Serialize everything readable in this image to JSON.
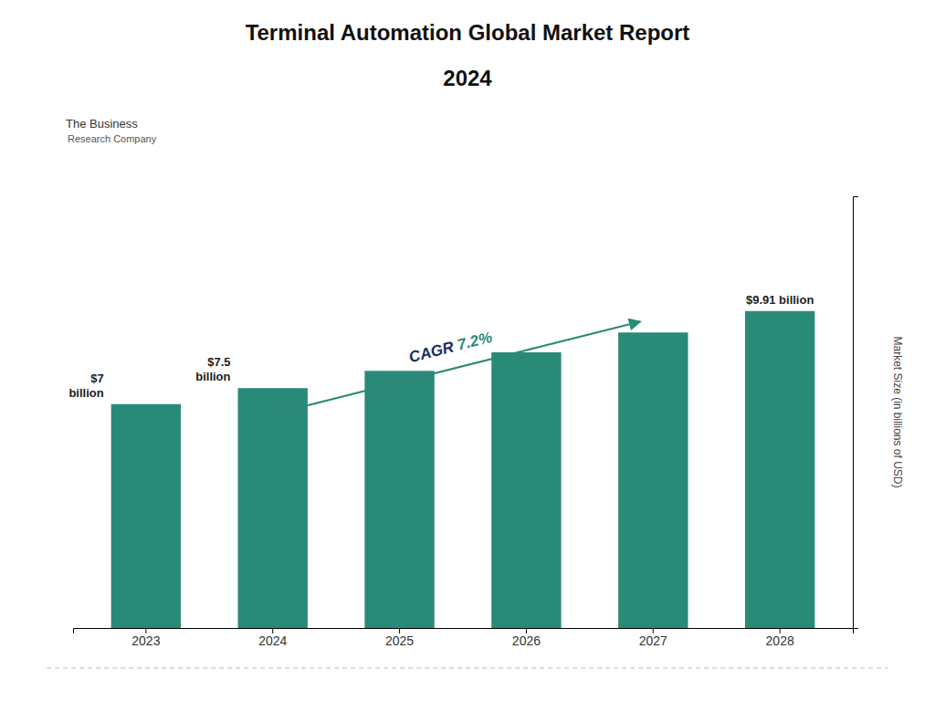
{
  "chart_data": {
    "type": "bar",
    "title": "Terminal Automation Global Market Report\n2024",
    "categories": [
      "2023",
      "2024",
      "2025",
      "2026",
      "2027",
      "2028"
    ],
    "values": [
      7.0,
      7.5,
      8.04,
      8.62,
      9.24,
      9.91
    ],
    "value_labels": [
      "$7\nbillion",
      "$7.5\nbillion",
      null,
      null,
      null,
      "$9.91 billion"
    ],
    "color": "#2a8a78",
    "ylabel": "Market Size (in billions of USD)",
    "ylim": [
      0,
      13.5
    ],
    "yticks": [],
    "grid": false,
    "tick_labels": "x",
    "annotations": [
      {
        "text": "CAGR ",
        "color": "#1a2e5a",
        "from": "2024",
        "to": "2027"
      },
      {
        "text": "7.2%",
        "color": "#2a8a78",
        "from": "2024",
        "to": "2027"
      },
      {
        "text": "The Business"
      },
      {
        "text": "Research Company"
      }
    ]
  }
}
